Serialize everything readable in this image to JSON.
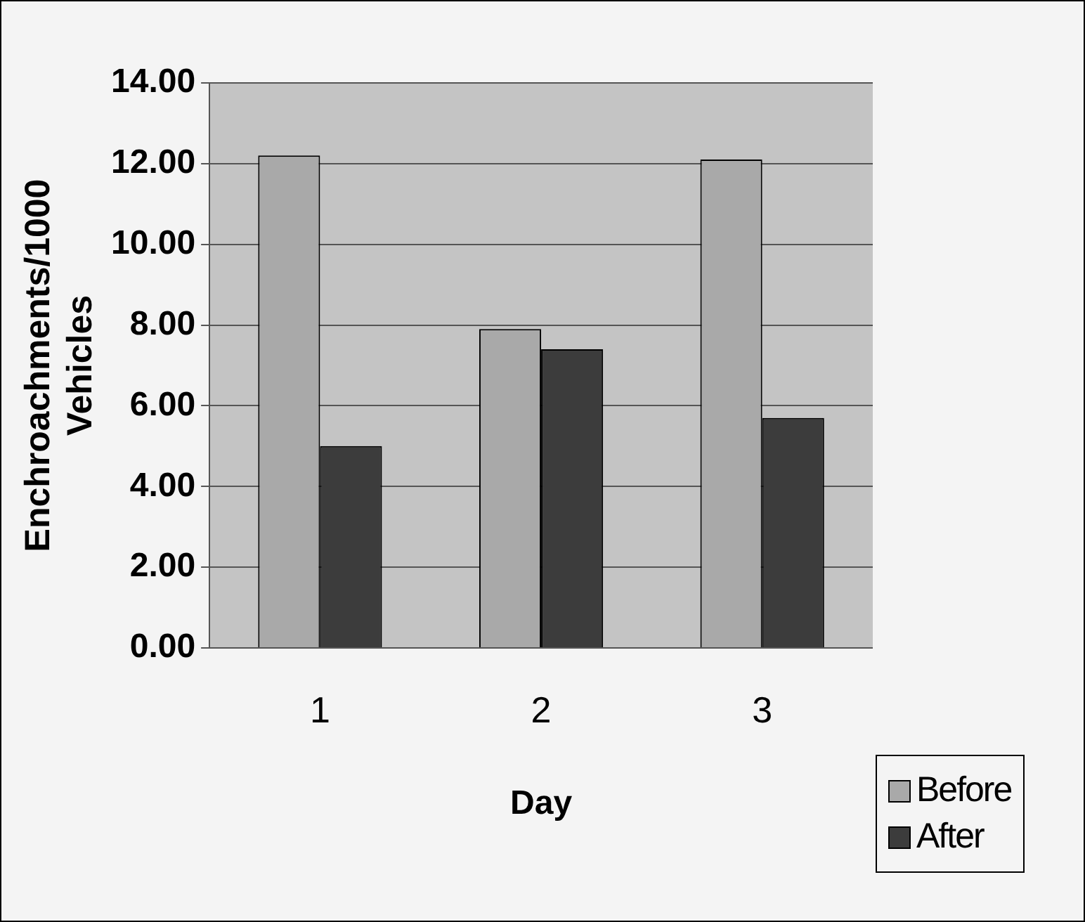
{
  "chart_data": {
    "type": "bar",
    "xlabel": "Day",
    "ylabel": "Enchroachments/1000 Vehicles",
    "categories": [
      "1",
      "2",
      "3"
    ],
    "series": [
      {
        "name": "Before",
        "color": "#a9a9a9",
        "values": [
          12.2,
          7.9,
          12.1
        ]
      },
      {
        "name": "After",
        "color": "#3c3c3c",
        "values": [
          5.0,
          7.4,
          5.7
        ]
      }
    ],
    "ylim": [
      0,
      14
    ],
    "yticks": [
      {
        "value": 0,
        "label": "0.00"
      },
      {
        "value": 2,
        "label": "2.00"
      },
      {
        "value": 4,
        "label": "4.00"
      },
      {
        "value": 6,
        "label": "6.00"
      },
      {
        "value": 8,
        "label": "8.00"
      },
      {
        "value": 10,
        "label": "10.00"
      },
      {
        "value": 12,
        "label": "12.00"
      },
      {
        "value": 14,
        "label": "14.00"
      }
    ],
    "grid": "y",
    "legend": "bottom right"
  }
}
